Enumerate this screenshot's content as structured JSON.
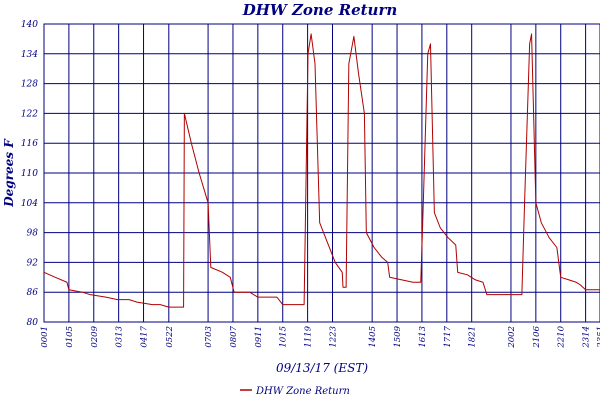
{
  "chart_data": {
    "type": "line",
    "title": "DHW Zone Return",
    "xlabel": "09/13/17 (EST)",
    "ylabel": "Degrees F",
    "ylim": [
      80,
      140
    ],
    "yticks": [
      80,
      86,
      92,
      98,
      104,
      110,
      116,
      122,
      128,
      134,
      140
    ],
    "xlim": [
      "00:01",
      "23:51"
    ],
    "xticks": [
      "00:01",
      "01:05",
      "02:09",
      "03:13",
      "04:17",
      "05:22",
      "07:03",
      "08:07",
      "09:11",
      "10:15",
      "11:19",
      "12:23",
      "14:05",
      "15:09",
      "16:13",
      "17:17",
      "18:21",
      "20:02",
      "21:06",
      "22:10",
      "23:14",
      "23:51"
    ],
    "grid": true,
    "legend_position": "bottom-right",
    "colors": {
      "series": "#b00000",
      "grid": "#000080",
      "text": "#000080"
    },
    "series": [
      {
        "name": "DHW Zone Return",
        "points": [
          [
            "00:01",
            90.0
          ],
          [
            "00:30",
            89.0
          ],
          [
            "01:00",
            88.0
          ],
          [
            "01:05",
            86.5
          ],
          [
            "01:40",
            86.0
          ],
          [
            "02:00",
            85.5
          ],
          [
            "02:40",
            85.0
          ],
          [
            "03:10",
            84.5
          ],
          [
            "03:40",
            84.5
          ],
          [
            "04:00",
            84.0
          ],
          [
            "04:40",
            83.5
          ],
          [
            "05:00",
            83.5
          ],
          [
            "05:22",
            83.0
          ],
          [
            "06:00",
            83.0
          ],
          [
            "06:02",
            122.0
          ],
          [
            "06:20",
            116.0
          ],
          [
            "06:40",
            110.0
          ],
          [
            "07:03",
            104.0
          ],
          [
            "07:10",
            91.0
          ],
          [
            "07:40",
            90.0
          ],
          [
            "08:00",
            89.0
          ],
          [
            "08:10",
            86.0
          ],
          [
            "08:50",
            86.0
          ],
          [
            "09:11",
            85.0
          ],
          [
            "10:00",
            85.0
          ],
          [
            "10:15",
            83.5
          ],
          [
            "11:00",
            83.5
          ],
          [
            "11:10",
            83.5
          ],
          [
            "11:20",
            134.0
          ],
          [
            "11:28",
            138.0
          ],
          [
            "11:38",
            132.0
          ],
          [
            "11:50",
            100.0
          ],
          [
            "12:10",
            96.0
          ],
          [
            "12:30",
            92.0
          ],
          [
            "12:48",
            90.0
          ],
          [
            "12:50",
            87.0
          ],
          [
            "12:58",
            87.0
          ],
          [
            "13:05",
            132.0
          ],
          [
            "13:18",
            137.5
          ],
          [
            "13:30",
            130.0
          ],
          [
            "13:45",
            122.0
          ],
          [
            "13:50",
            98.0
          ],
          [
            "14:10",
            95.0
          ],
          [
            "14:30",
            93.0
          ],
          [
            "14:45",
            92.0
          ],
          [
            "14:50",
            89.0
          ],
          [
            "15:20",
            88.5
          ],
          [
            "15:50",
            88.0
          ],
          [
            "16:10",
            88.0
          ],
          [
            "16:15",
            100.0
          ],
          [
            "16:28",
            134.0
          ],
          [
            "16:35",
            136.0
          ],
          [
            "16:45",
            102.0
          ],
          [
            "17:00",
            99.0
          ],
          [
            "17:20",
            97.0
          ],
          [
            "17:40",
            95.5
          ],
          [
            "17:45",
            90.0
          ],
          [
            "18:10",
            89.5
          ],
          [
            "18:30",
            88.5
          ],
          [
            "18:50",
            88.0
          ],
          [
            "19:00",
            85.5
          ],
          [
            "19:30",
            85.5
          ],
          [
            "20:02",
            85.5
          ],
          [
            "20:10",
            85.5
          ],
          [
            "20:30",
            85.5
          ],
          [
            "20:37",
            104.0
          ],
          [
            "20:50",
            136.0
          ],
          [
            "20:55",
            138.0
          ],
          [
            "21:06",
            104.0
          ],
          [
            "21:20",
            100.0
          ],
          [
            "21:40",
            97.0
          ],
          [
            "22:00",
            95.0
          ],
          [
            "22:10",
            89.0
          ],
          [
            "22:30",
            88.5
          ],
          [
            "22:50",
            88.0
          ],
          [
            "23:00",
            87.5
          ],
          [
            "23:14",
            86.5
          ],
          [
            "23:40",
            86.5
          ],
          [
            "23:51",
            86.5
          ]
        ]
      }
    ]
  }
}
